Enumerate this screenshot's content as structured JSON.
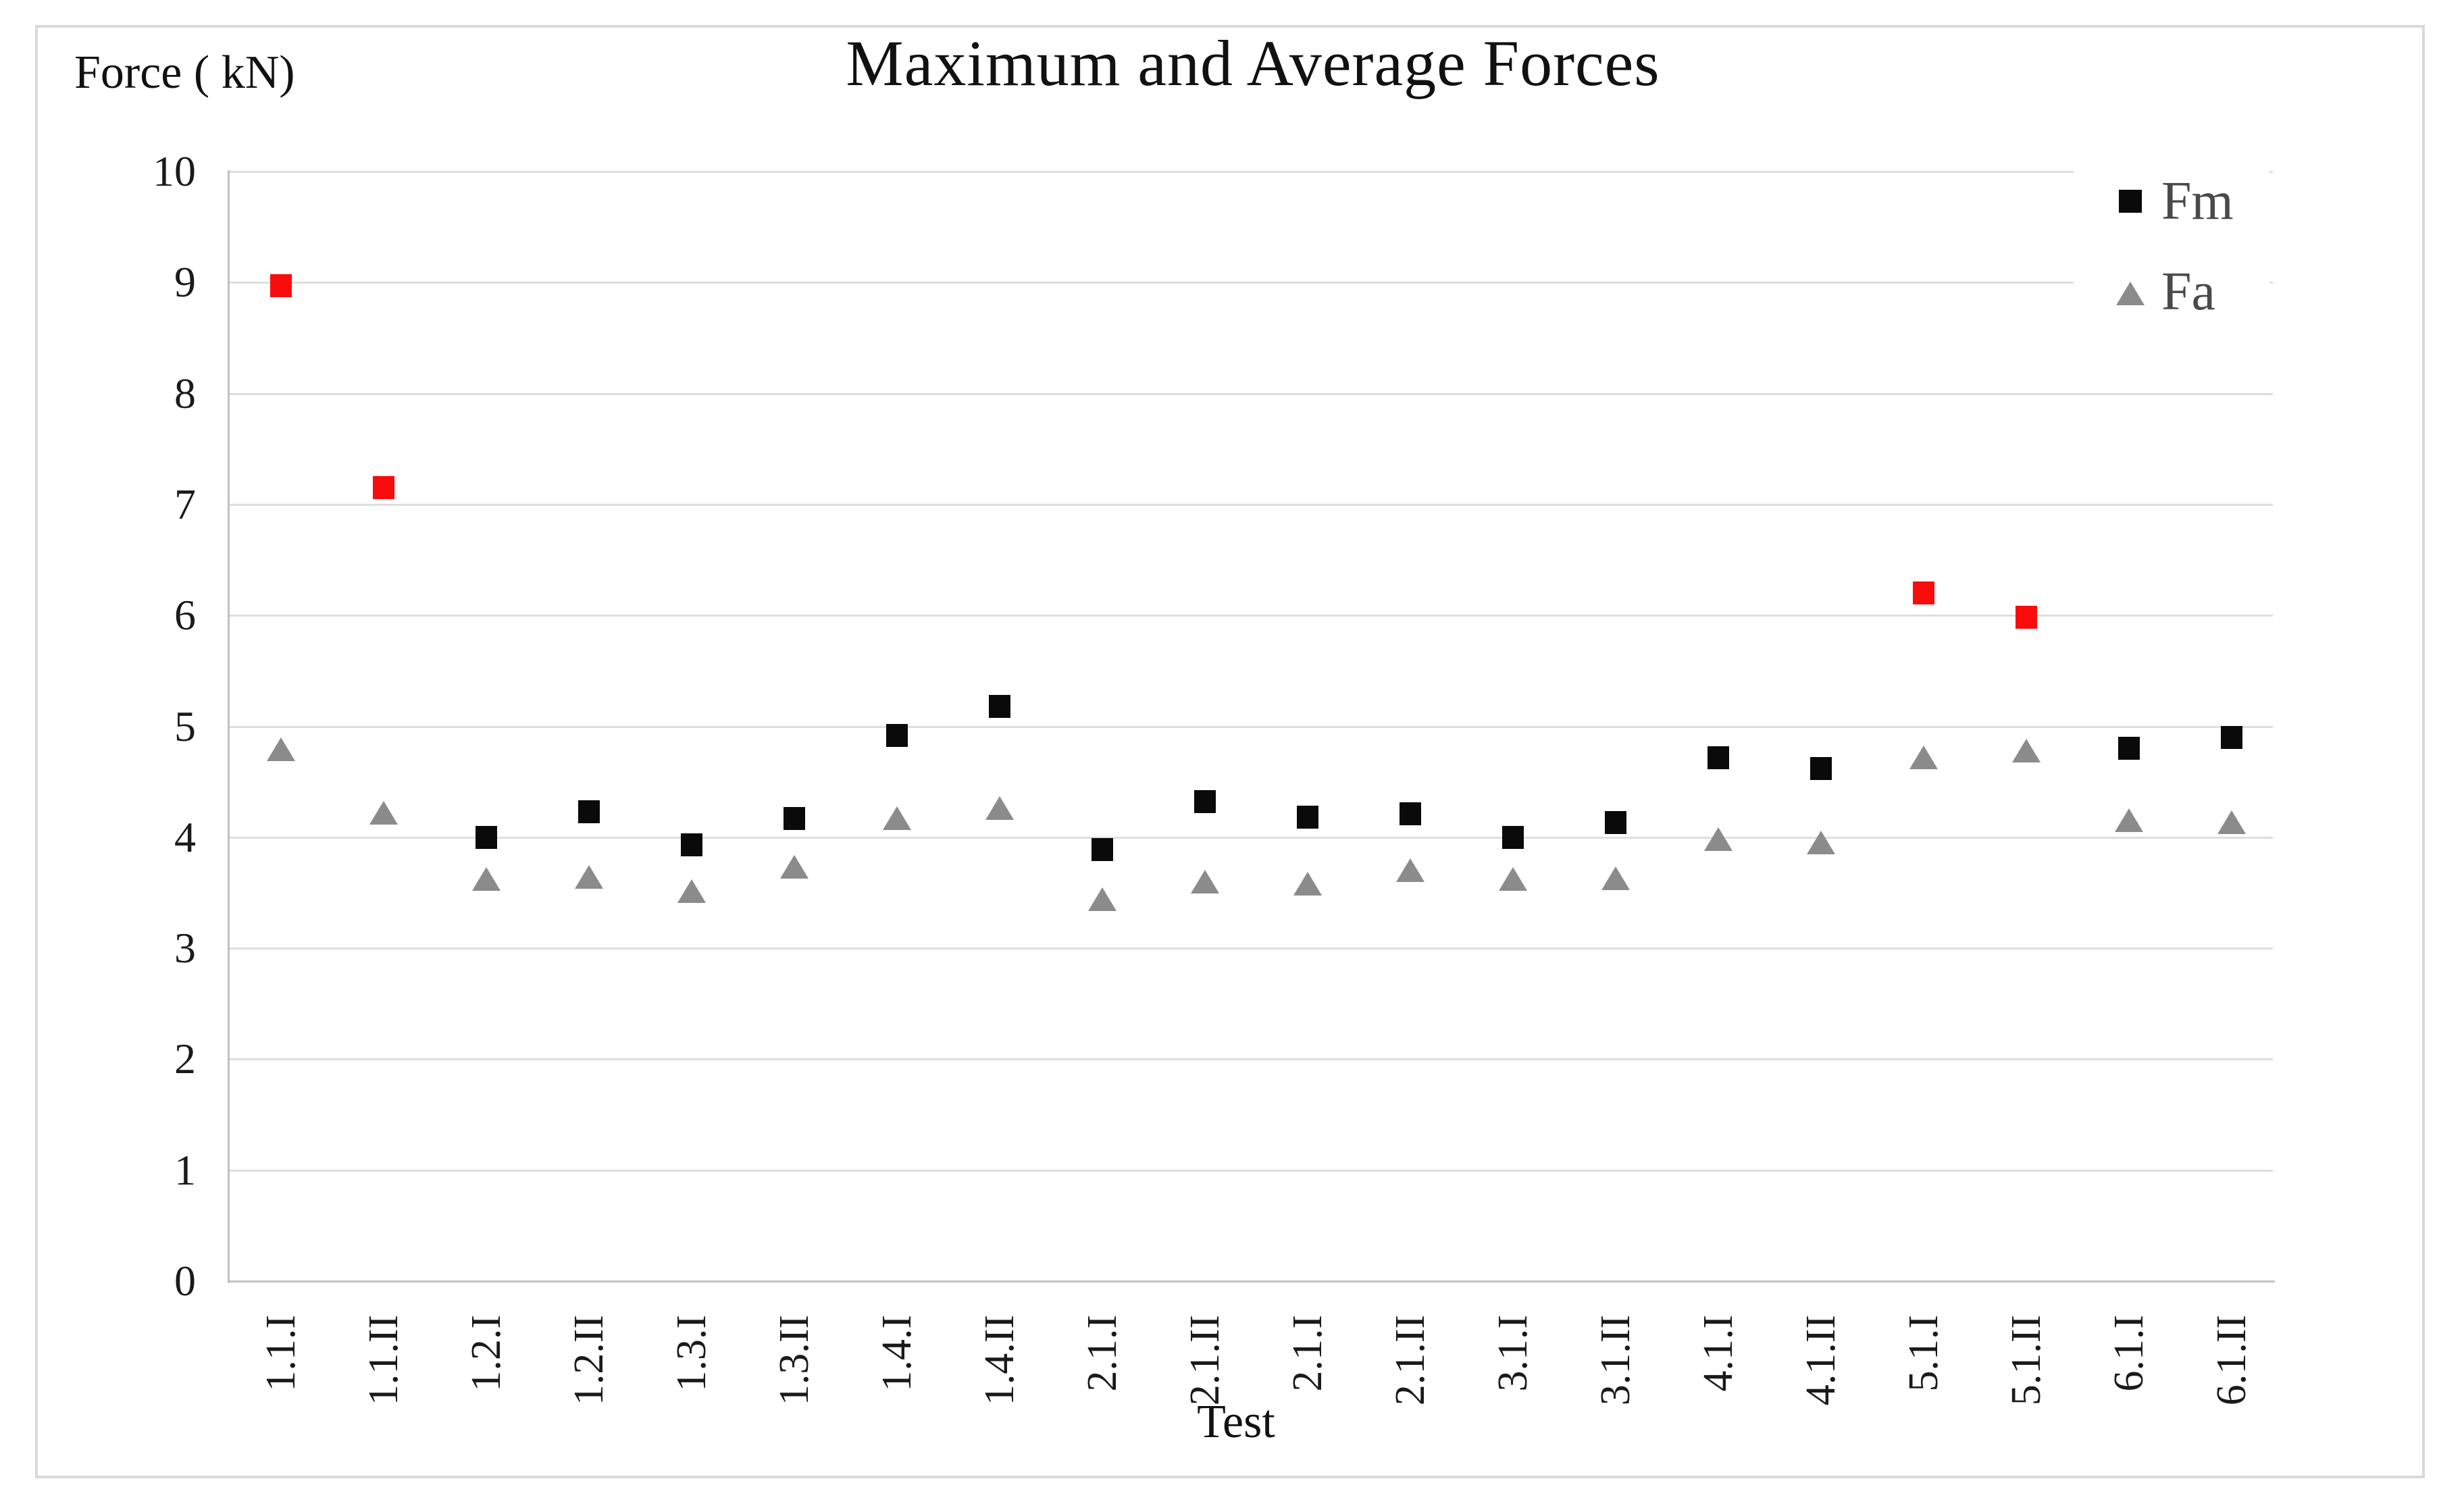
{
  "figure": {
    "title": "Maximum and Average Forces",
    "y_axis_label": "Force ( kN)",
    "x_axis_label": "Test"
  },
  "chart_data": {
    "type": "scatter",
    "title": "Maximum and Average Forces",
    "xlabel": "Test",
    "ylabel": "Force ( kN)",
    "ylim": [
      0,
      10
    ],
    "y_ticks": [
      0,
      1,
      2,
      3,
      4,
      5,
      6,
      7,
      8,
      9,
      10
    ],
    "grid": "horizontal",
    "legend_position": "top-right",
    "categories": [
      "1.1.I",
      "1.1.II",
      "1.2.I",
      "1.2.II",
      "1.3.I",
      "1.3.II",
      "1.4.I",
      "1.4.II",
      "2.1.I",
      "2.1.II",
      "2.1.I",
      "2.1.II",
      "3.1.I",
      "3.1.II",
      "4.1.I",
      "4.1.II",
      "5.1.I",
      "5.1.II",
      "6.1.I",
      "6.1.II"
    ],
    "series": [
      {
        "name": "Fm",
        "marker": "square",
        "color": "#0a0a0a",
        "outlier_color": "#f90c0c",
        "values": [
          8.97,
          7.15,
          4.0,
          4.23,
          3.93,
          4.17,
          4.92,
          5.18,
          3.89,
          4.32,
          4.18,
          4.21,
          4.0,
          4.13,
          4.72,
          4.62,
          6.2,
          5.98,
          4.8,
          4.9
        ],
        "outliers": [
          true,
          true,
          false,
          false,
          false,
          false,
          false,
          false,
          false,
          false,
          false,
          false,
          false,
          false,
          false,
          false,
          true,
          true,
          false,
          false
        ]
      },
      {
        "name": "Fa",
        "marker": "triangle",
        "color": "#8b8b8b",
        "values": [
          4.79,
          4.22,
          3.62,
          3.64,
          3.51,
          3.73,
          4.17,
          4.26,
          3.44,
          3.6,
          3.58,
          3.7,
          3.62,
          3.63,
          3.98,
          3.95,
          4.72,
          4.78,
          4.15,
          4.13
        ]
      }
    ]
  },
  "colors": {
    "background": "#ffffff",
    "frame_border": "#d9d9d9",
    "gridline": "#dedede",
    "axis_line": "#c2c2c2",
    "text": "#1a1a1a",
    "legend_text": "#4a4a4a",
    "fm_black": "#0a0a0a",
    "fm_red": "#f90c0c",
    "fa_gray": "#8b8b8b"
  }
}
